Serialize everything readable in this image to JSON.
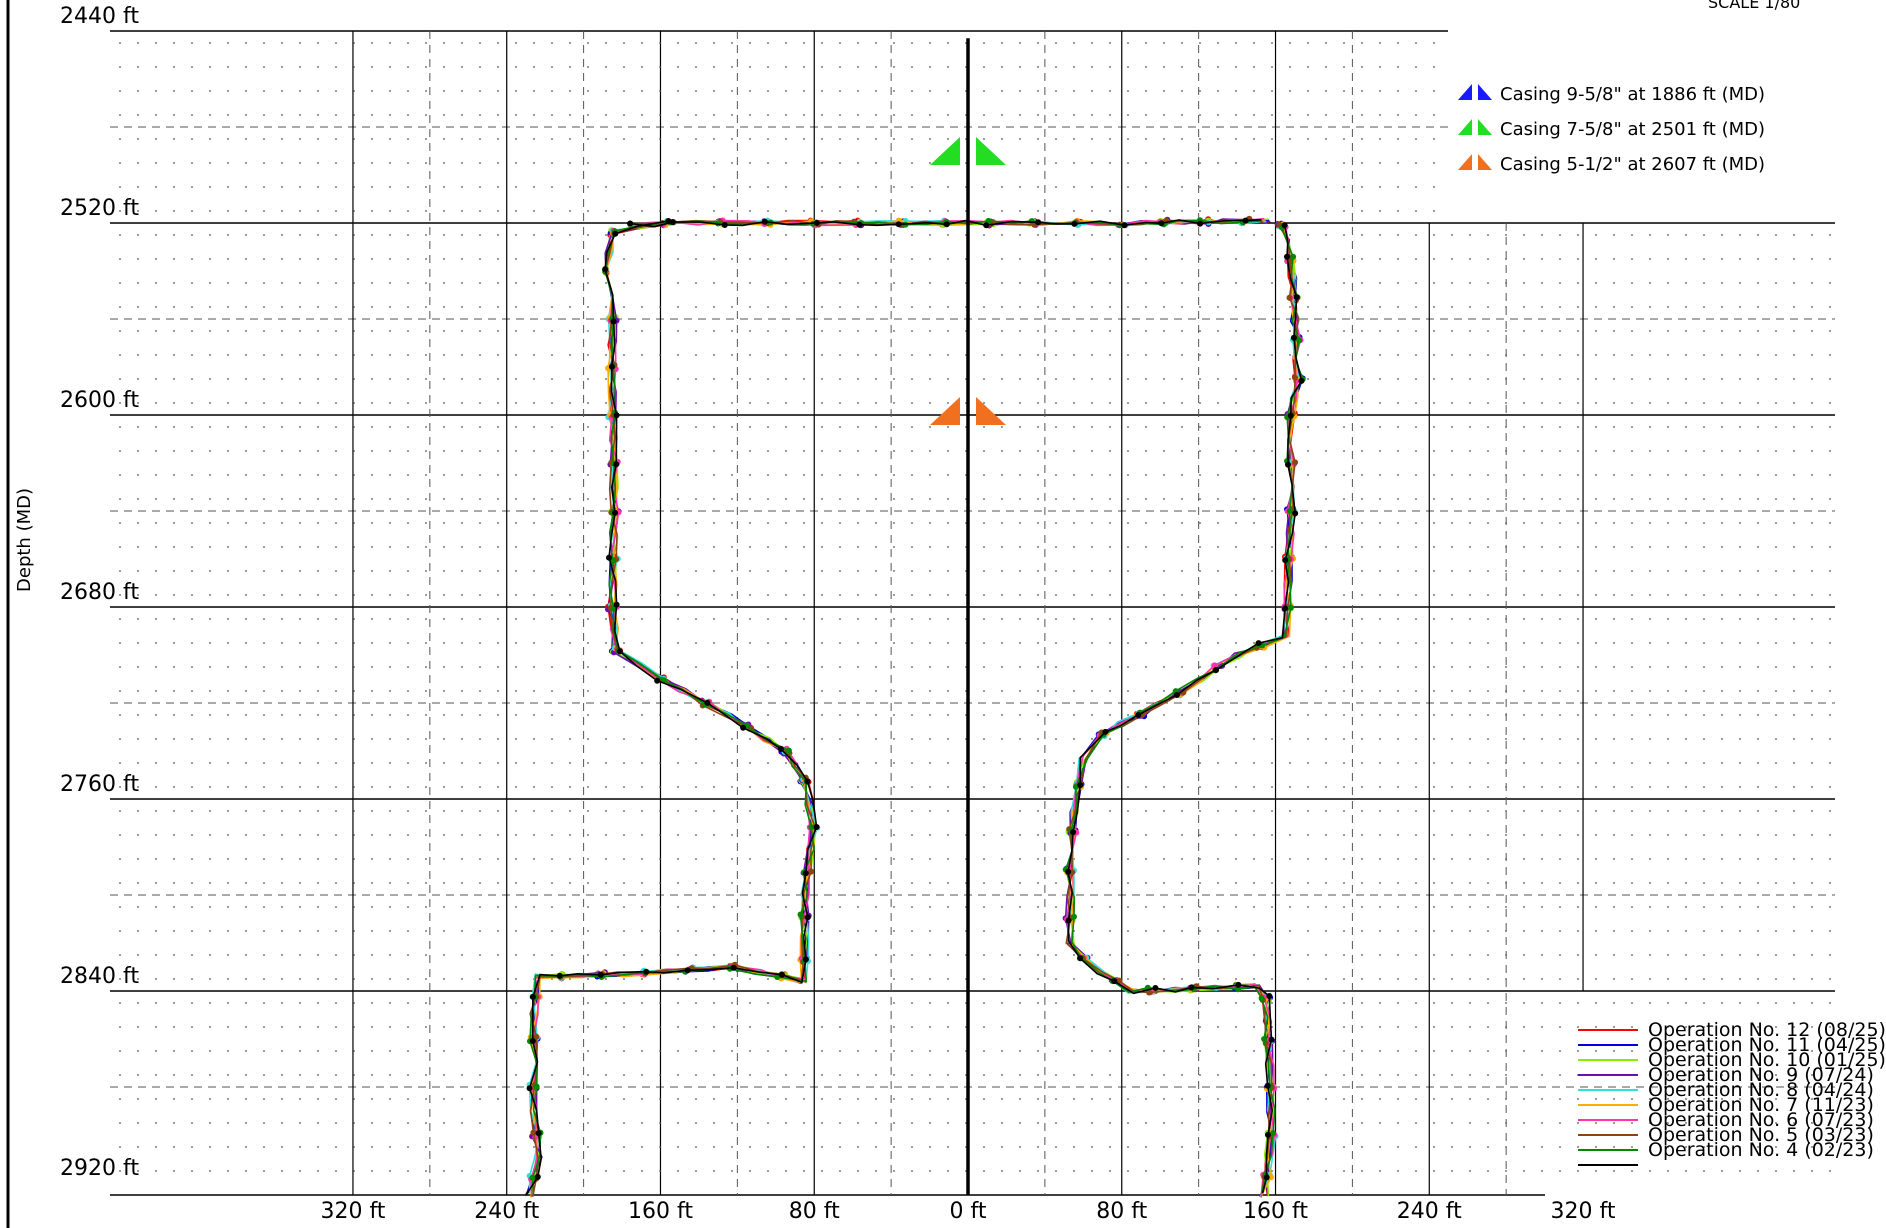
{
  "chart_data": {
    "type": "line",
    "scale_label": "SCALE 1/80",
    "ylabel": "Depth (MD)",
    "xlabel": "",
    "x_axis": {
      "min": -320,
      "max": 320,
      "unit": "ft",
      "major_ticks": [
        -320,
        -240,
        -160,
        -80,
        0,
        80,
        160,
        240,
        320
      ],
      "tick_labels": [
        "320 ft",
        "240 ft",
        "160 ft",
        "80 ft",
        "0 ft",
        "80 ft",
        "160 ft",
        "240 ft",
        "320 ft"
      ]
    },
    "y_axis": {
      "min": 2440,
      "max": 2925,
      "unit": "ft",
      "inverted": true,
      "major_ticks": [
        2440,
        2520,
        2600,
        2680,
        2760,
        2840,
        2920
      ],
      "tick_labels": [
        "2440 ft",
        "2520 ft",
        "2600 ft",
        "2680 ft",
        "2760 ft",
        "2840 ft",
        "2920 ft"
      ]
    },
    "grid": true,
    "casings": [
      {
        "label": "Casing 9-5/8\" at 1886 ft (MD)",
        "depth": 1886,
        "color": "#1a1aff"
      },
      {
        "label": "Casing 7-5/8\" at 2501 ft (MD)",
        "depth": 2501,
        "color": "#22dd22"
      },
      {
        "label": "Casing 5-1/2\" at 2607 ft (MD)",
        "depth": 2607,
        "color": "#f07020"
      }
    ],
    "series": [
      {
        "name": "Operation No. 12 (08/25)",
        "color": "#ff0000"
      },
      {
        "name": "Operation No. 11 (04/25)",
        "color": "#0000dd"
      },
      {
        "name": "Operation No. 10 (01/25)",
        "color": "#88ee00"
      },
      {
        "name": "Operation No. 9 (07/24)",
        "color": "#6a0dad"
      },
      {
        "name": "Operation No. 8 (04/24)",
        "color": "#33dddd"
      },
      {
        "name": "Operation No. 7 (11/23)",
        "color": "#ffaa00"
      },
      {
        "name": "Operation No. 6 (07/23)",
        "color": "#ff33aa"
      },
      {
        "name": "Operation No. 5 (03/23)",
        "color": "#8b4513"
      },
      {
        "name": "Operation No. 4 (02/23)",
        "color": "#008800"
      },
      {
        "name": "",
        "color": "#000000"
      }
    ],
    "profile": {
      "left": [
        [
          -157,
          2520
        ],
        [
          -185,
          2524
        ],
        [
          -188,
          2540
        ],
        [
          -185,
          2560
        ],
        [
          -185,
          2600
        ],
        [
          -184,
          2640
        ],
        [
          -185,
          2680
        ],
        [
          -183,
          2698
        ],
        [
          -160,
          2710
        ],
        [
          -125,
          2725
        ],
        [
          -95,
          2740
        ],
        [
          -85,
          2752
        ],
        [
          -80,
          2772
        ],
        [
          -85,
          2800
        ],
        [
          -85,
          2836
        ],
        [
          -122,
          2830
        ],
        [
          -180,
          2833
        ],
        [
          -224,
          2834
        ],
        [
          -226,
          2850
        ],
        [
          -226,
          2880
        ],
        [
          -224,
          2910
        ],
        [
          -228,
          2925
        ]
      ],
      "top": [
        [
          -175,
          2521
        ],
        [
          -140,
          2520
        ],
        [
          -80,
          2520
        ],
        [
          0,
          2520
        ],
        [
          80,
          2520
        ],
        [
          155,
          2519
        ]
      ],
      "right": [
        [
          163,
          2521
        ],
        [
          168,
          2535
        ],
        [
          170,
          2560
        ],
        [
          172,
          2585
        ],
        [
          168,
          2600
        ],
        [
          168,
          2640
        ],
        [
          166,
          2680
        ],
        [
          165,
          2692
        ],
        [
          140,
          2700
        ],
        [
          110,
          2716
        ],
        [
          70,
          2733
        ],
        [
          60,
          2743
        ],
        [
          55,
          2765
        ],
        [
          53,
          2790
        ],
        [
          53,
          2820
        ],
        [
          68,
          2832
        ],
        [
          85,
          2840
        ],
        [
          150,
          2838
        ],
        [
          155,
          2843
        ],
        [
          157,
          2870
        ],
        [
          158,
          2900
        ],
        [
          154,
          2925
        ]
      ]
    }
  }
}
